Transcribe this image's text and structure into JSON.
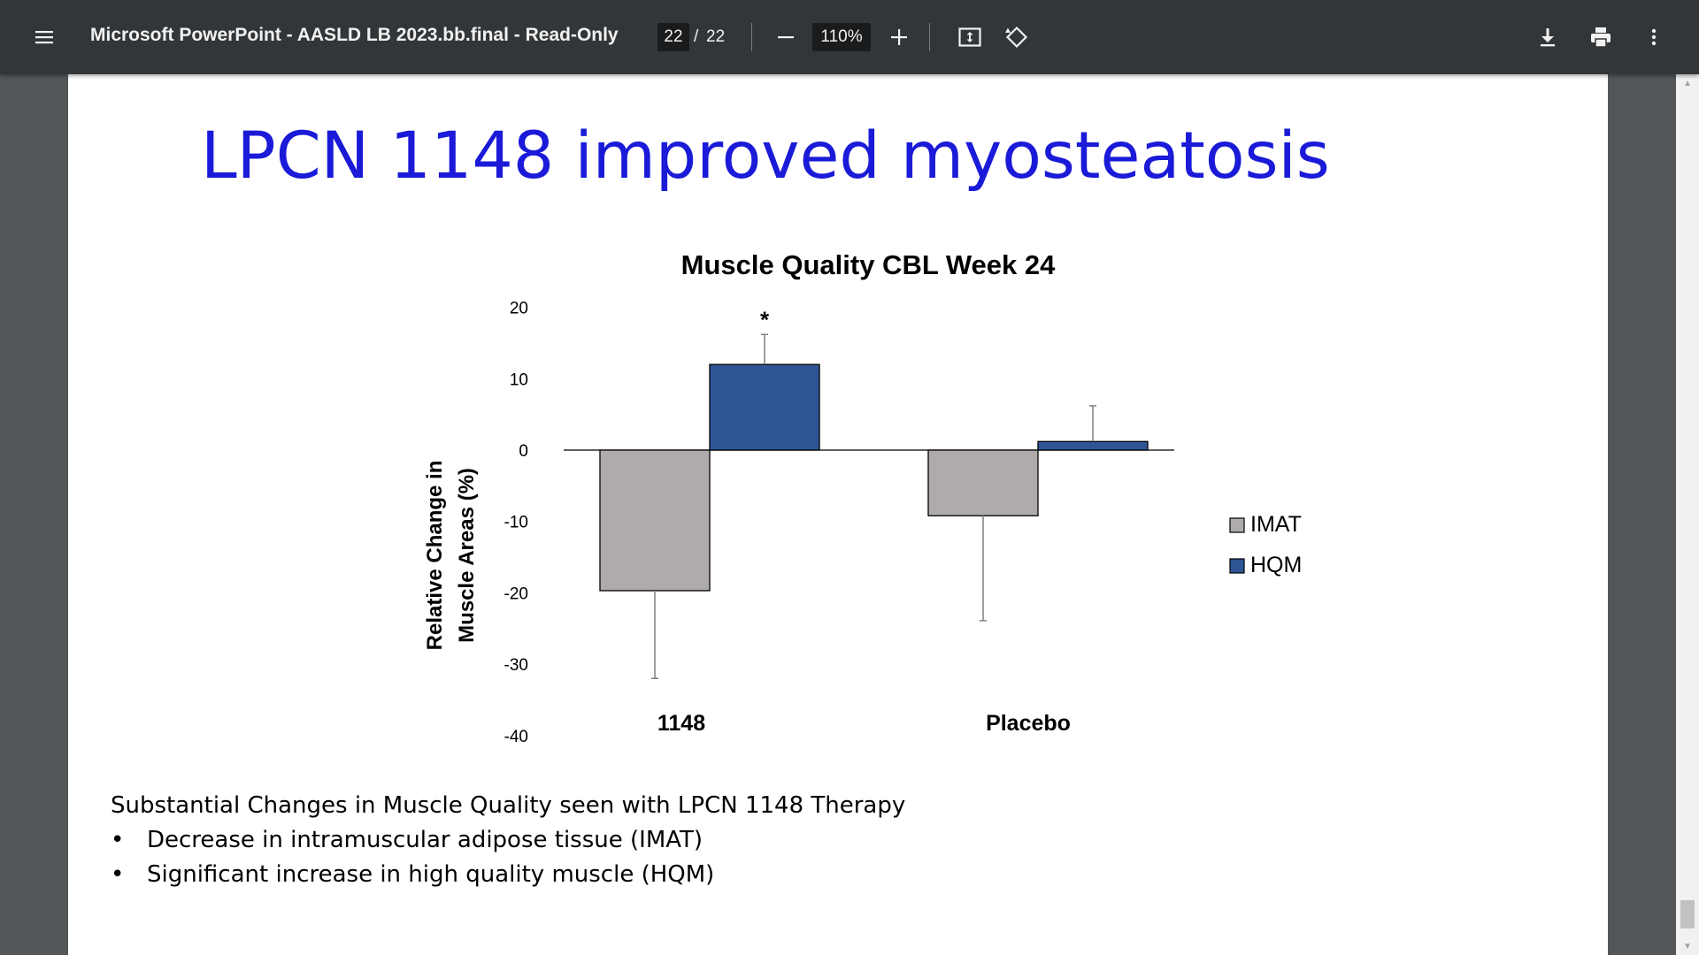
{
  "toolbar": {
    "title": "Microsoft PowerPoint - AASLD LB 2023.bb.final - Read-Only",
    "page_current": "22",
    "page_sep": "/",
    "page_total": "22",
    "zoom": "110%",
    "icons": [
      "menu-icon",
      "minus-icon",
      "plus-icon",
      "fit-page-icon",
      "rotate-icon",
      "download-icon",
      "print-icon",
      "more-vert-icon"
    ]
  },
  "slide": {
    "title": "LPCN 1148 improved myosteatosis",
    "summary": "Substantial Changes in Muscle Quality seen with LPCN 1148 Therapy",
    "bullets": [
      "Decrease in intramuscular adipose tissue (IMAT)",
      "Significant increase in high quality muscle (HQM)"
    ],
    "bullet_char": "•"
  },
  "chart_data": {
    "type": "bar",
    "title": "Muscle Quality CBL Week 24",
    "ylabel": "Relative Change in Muscle Areas (%)",
    "ylabel_lines": [
      "Relative Change in",
      "Muscle Areas (%)"
    ],
    "xlabel": "",
    "ylim": [
      -40,
      20
    ],
    "yticks": [
      20,
      10,
      0,
      -10,
      -20,
      -30,
      -40
    ],
    "categories": [
      "1148",
      "Placebo"
    ],
    "series": [
      {
        "name": "IMAT",
        "color": "#afabab",
        "values": [
          -19.7,
          -9.2
        ],
        "error": [
          12.3,
          14.7
        ]
      },
      {
        "name": "HQM",
        "color": "#2f5597",
        "values": [
          12.0,
          1.2
        ],
        "error": [
          4.2,
          5.0
        ]
      }
    ],
    "annotations": [
      {
        "text": "*",
        "category": "1148",
        "series": "HQM"
      }
    ],
    "legend_position": "right",
    "grid": false
  }
}
